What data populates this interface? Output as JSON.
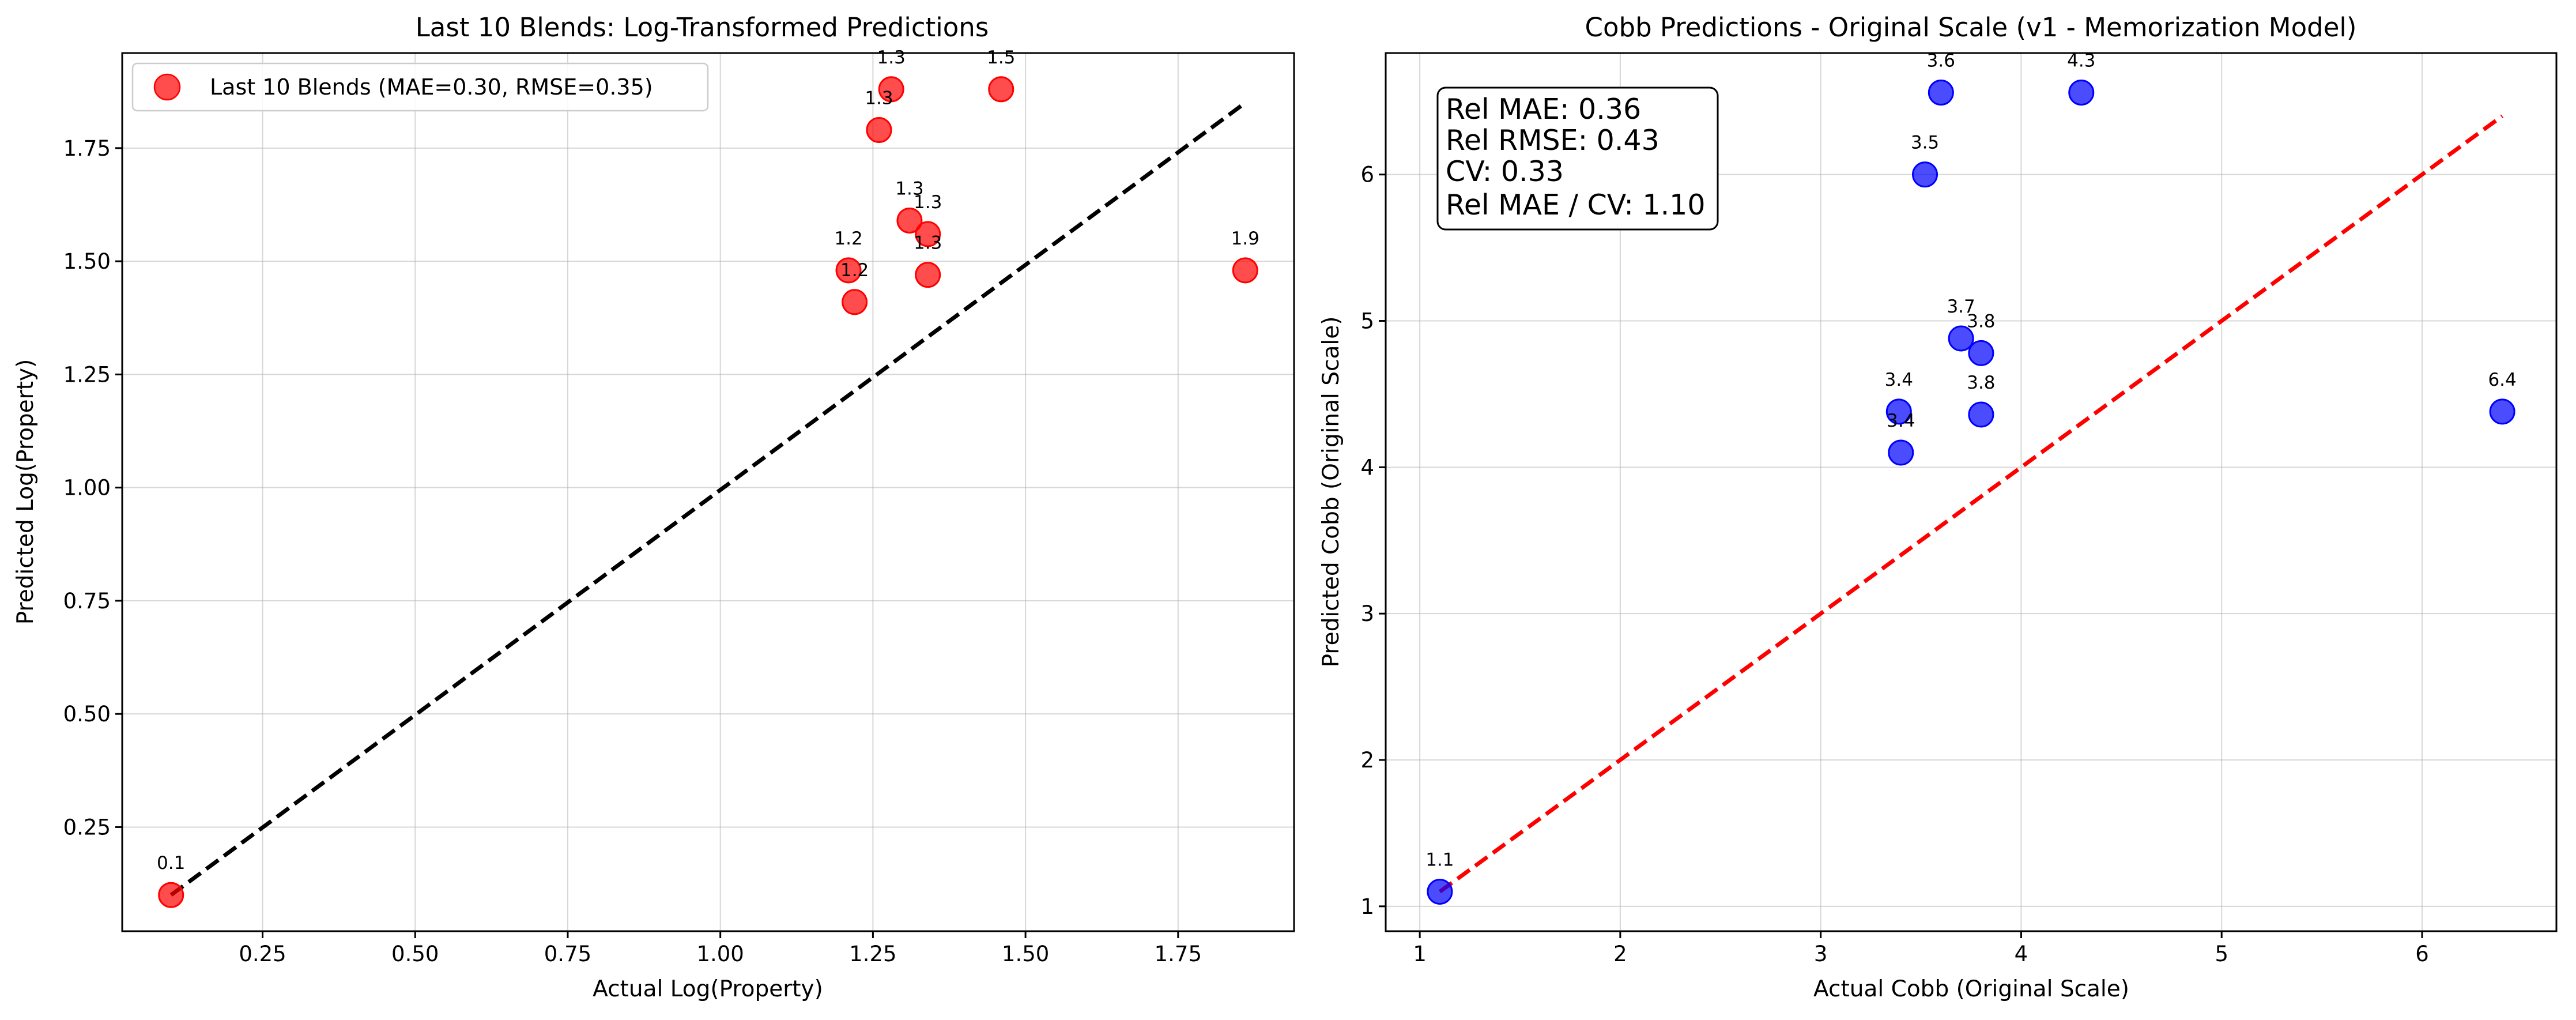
{
  "colors": {
    "left_points": "#ff0000",
    "right_points": "#0000ff",
    "left_identity_line": "#000000",
    "right_identity_line": "#ff0000",
    "grid": "#b0b0b0"
  },
  "chart_data": [
    {
      "type": "scatter",
      "title": "Last 10 Blends: Log-Transformed Predictions",
      "xlabel": "Actual Log(Property)",
      "ylabel": "Predicted Log(Property)",
      "xlim": [
        0.02,
        1.94
      ],
      "ylim": [
        0.02,
        1.96
      ],
      "xticks": [
        0.25,
        0.5,
        0.75,
        1.0,
        1.25,
        1.5,
        1.75
      ],
      "xtick_labels": [
        "0.25",
        "0.50",
        "0.75",
        "1.00",
        "1.25",
        "1.50",
        "1.75"
      ],
      "yticks": [
        0.25,
        0.5,
        0.75,
        1.0,
        1.25,
        1.5,
        1.75
      ],
      "ytick_labels": [
        "0.25",
        "0.50",
        "0.75",
        "1.00",
        "1.25",
        "1.50",
        "1.75"
      ],
      "grid": true,
      "legend_position": "top-left",
      "identity_line": {
        "from": [
          0.1,
          0.1
        ],
        "to": [
          1.86,
          1.85
        ],
        "style": "dashed",
        "color": "black"
      },
      "series": [
        {
          "name": "Last 10 Blends (MAE=0.30, RMSE=0.35)",
          "color": "red",
          "points": [
            {
              "x": 0.1,
              "y": 0.1,
              "label": "0.1"
            },
            {
              "x": 1.21,
              "y": 1.48,
              "label": "1.2"
            },
            {
              "x": 1.22,
              "y": 1.41,
              "label": "1.2"
            },
            {
              "x": 1.26,
              "y": 1.79,
              "label": "1.3"
            },
            {
              "x": 1.28,
              "y": 1.88,
              "label": "1.3"
            },
            {
              "x": 1.31,
              "y": 1.59,
              "label": "1.3"
            },
            {
              "x": 1.34,
              "y": 1.56,
              "label": "1.3"
            },
            {
              "x": 1.34,
              "y": 1.47,
              "label": "1.3"
            },
            {
              "x": 1.46,
              "y": 1.88,
              "label": "1.5"
            },
            {
              "x": 1.86,
              "y": 1.48,
              "label": "1.9"
            }
          ]
        }
      ]
    },
    {
      "type": "scatter",
      "title": "Cobb Predictions - Original Scale (v1 - Memorization Model)",
      "xlabel": "Actual Cobb (Original Scale)",
      "ylabel": "Predicted Cobb (Original Scale)",
      "xlim": [
        0.83,
        6.67
      ],
      "ylim": [
        0.83,
        6.83
      ],
      "xticks": [
        1,
        2,
        3,
        4,
        5,
        6
      ],
      "xtick_labels": [
        "1",
        "2",
        "3",
        "4",
        "5",
        "6"
      ],
      "yticks": [
        1,
        2,
        3,
        4,
        5,
        6
      ],
      "ytick_labels": [
        "1",
        "2",
        "3",
        "4",
        "5",
        "6"
      ],
      "grid": true,
      "identity_line": {
        "from": [
          1.1,
          1.1
        ],
        "to": [
          6.4,
          6.4
        ],
        "style": "dashed",
        "color": "red"
      },
      "stats_box": [
        "Rel MAE: 0.36",
        "Rel RMSE: 0.43",
        "CV: 0.33",
        "Rel MAE / CV: 1.10"
      ],
      "series": [
        {
          "color": "blue",
          "points": [
            {
              "x": 1.1,
              "y": 1.1,
              "label": "1.1"
            },
            {
              "x": 3.39,
              "y": 4.38,
              "label": "3.4"
            },
            {
              "x": 3.4,
              "y": 4.1,
              "label": "3.4"
            },
            {
              "x": 3.52,
              "y": 6.0,
              "label": "3.5"
            },
            {
              "x": 3.6,
              "y": 6.56,
              "label": "3.6"
            },
            {
              "x": 3.7,
              "y": 4.88,
              "label": "3.7"
            },
            {
              "x": 3.8,
              "y": 4.78,
              "label": "3.8"
            },
            {
              "x": 3.8,
              "y": 4.36,
              "label": "3.8"
            },
            {
              "x": 4.3,
              "y": 6.56,
              "label": "4.3"
            },
            {
              "x": 6.4,
              "y": 4.38,
              "label": "6.4"
            }
          ]
        }
      ]
    }
  ]
}
